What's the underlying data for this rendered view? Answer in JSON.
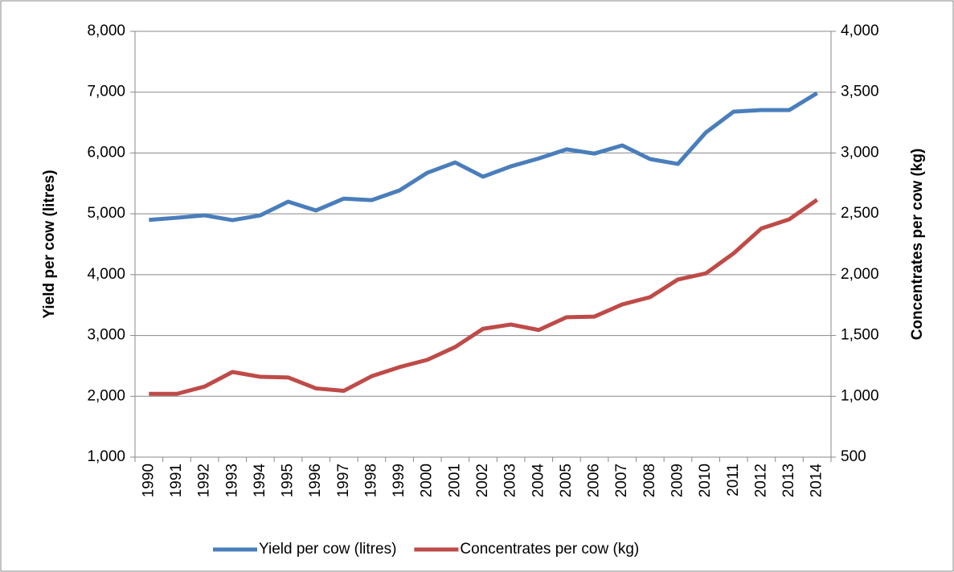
{
  "chart_data": {
    "type": "line",
    "categories": [
      "1990",
      "1991",
      "1992",
      "1993",
      "1994",
      "1995",
      "1996",
      "1997",
      "1998",
      "1999",
      "2000",
      "2001",
      "2002",
      "2003",
      "2004",
      "2005",
      "2006",
      "2007",
      "2008",
      "2009",
      "2010",
      "2011",
      "2012",
      "2013",
      "2014"
    ],
    "series": [
      {
        "name": "Yield per cow (litres)",
        "color": "#4a7ebb",
        "values": [
          4900,
          4935,
          4975,
          4895,
          4975,
          5200,
          5055,
          5250,
          5225,
          5385,
          5675,
          5845,
          5610,
          5780,
          5910,
          6060,
          5990,
          6125,
          5900,
          5820,
          6335,
          6680,
          6705,
          6705,
          6985
        ]
      },
      {
        "name": "Concentrates per cow (kg)",
        "color": "#be4b48",
        "axis": "y2",
        "values": [
          1020,
          1020,
          1080,
          1200,
          1160,
          1155,
          1065,
          1045,
          1165,
          1240,
          1300,
          1405,
          1555,
          1590,
          1545,
          1650,
          1655,
          1755,
          1815,
          1960,
          2010,
          2175,
          2380,
          2455,
          2615
        ]
      }
    ],
    "y_label": "Yield per cow (litres)",
    "y2_label": "Concentrates per cow (kg)",
    "ylim": [
      1000,
      8000
    ],
    "yticks": [
      {
        "value": 1000,
        "label": "1,000"
      },
      {
        "value": 2000,
        "label": "2,000"
      },
      {
        "value": 3000,
        "label": "3,000"
      },
      {
        "value": 4000,
        "label": "4,000"
      },
      {
        "value": 5000,
        "label": "5,000"
      },
      {
        "value": 6000,
        "label": "6,000"
      },
      {
        "value": 7000,
        "label": "7,000"
      },
      {
        "value": 8000,
        "label": "8,000"
      }
    ],
    "y2lim": [
      500,
      4000
    ],
    "y2ticks": [
      500,
      {
        "value": 1000,
        "label": "1,000"
      },
      {
        "value": 1500,
        "label": "1,500"
      },
      {
        "value": 2000,
        "label": "2,000"
      },
      {
        "value": 2500,
        "label": "2,500"
      },
      {
        "value": 3000,
        "label": "3,000"
      },
      {
        "value": 3500,
        "label": "3,500"
      },
      {
        "value": 4000,
        "label": "4,000"
      }
    ],
    "grid": true,
    "legend": "bottom"
  }
}
